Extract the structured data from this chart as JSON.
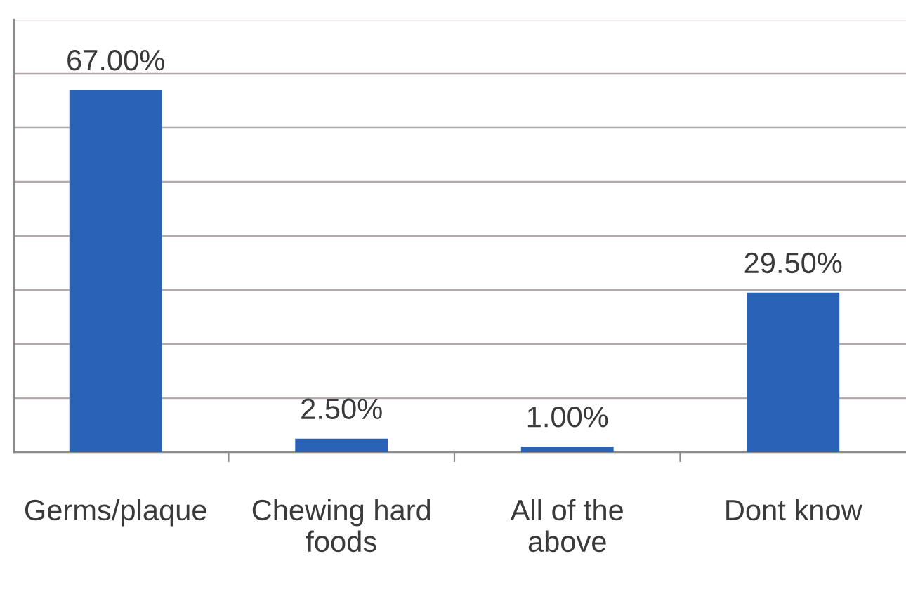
{
  "chart_data": {
    "type": "bar",
    "categories": [
      "Germs/plaque",
      "Chewing hard\nfoods",
      "All of the\nabove",
      "Dont know"
    ],
    "values": [
      67,
      2.5,
      1,
      29.5
    ],
    "value_labels": [
      "67.00%",
      "2.50%",
      "1.00%",
      "29.50%"
    ],
    "color": "#2a62b8",
    "ylim": [
      0,
      80
    ],
    "yticks": [
      {
        "value": 0,
        "label": null
      },
      {
        "value": 10,
        "label": null
      },
      {
        "value": 20,
        "label": null
      },
      {
        "value": 30,
        "label": null
      },
      {
        "value": 40,
        "label": null
      },
      {
        "value": 50,
        "label": null
      },
      {
        "value": 60,
        "label": null
      },
      {
        "value": 70,
        "label": null
      },
      {
        "value": 80,
        "label": null
      }
    ],
    "grid": "y"
  }
}
